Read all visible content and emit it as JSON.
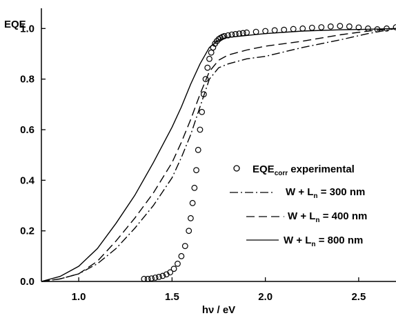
{
  "chart_data": {
    "type": "line",
    "ylabel": "EQE",
    "xlabel": "hν / eV",
    "xlim": [
      0.8,
      2.7
    ],
    "ylim": [
      0.0,
      1.08
    ],
    "x_ticks": [
      1.0,
      1.5,
      2.0,
      2.5
    ],
    "x_tick_labels": [
      "1.0",
      "1.5",
      "2.0",
      "2.5"
    ],
    "y_ticks": [
      0.0,
      0.2,
      0.4,
      0.6,
      0.8,
      1.0
    ],
    "y_tick_labels": [
      "0.0",
      "0.2",
      "0.4",
      "0.6",
      "0.8",
      "1.0"
    ],
    "grid": false,
    "legend_position": "right",
    "legend": {
      "experimental": {
        "base": "EQE",
        "sub": "corr",
        "rest": " experimental"
      },
      "w300": {
        "pre": "W + L",
        "sub": "n",
        "post": " = 300 nm"
      },
      "w400": {
        "pre": "W + L",
        "sub": "n",
        "post": " = 400 nm"
      },
      "w800": {
        "pre": "W + L",
        "sub": "n",
        "post": " = 800 nm"
      }
    },
    "series": [
      {
        "key": "w800",
        "style": "solid",
        "x": [
          0.8,
          0.9,
          1.0,
          1.1,
          1.2,
          1.3,
          1.4,
          1.5,
          1.55,
          1.6,
          1.65,
          1.7,
          1.75,
          1.8,
          2.0,
          2.2,
          2.4,
          2.55,
          2.7
        ],
        "y": [
          0.0,
          0.02,
          0.06,
          0.13,
          0.23,
          0.34,
          0.47,
          0.61,
          0.69,
          0.78,
          0.86,
          0.925,
          0.955,
          0.965,
          0.98,
          0.99,
          0.995,
          0.997,
          1.0
        ]
      },
      {
        "key": "w400",
        "style": "dashed",
        "x": [
          0.8,
          0.9,
          1.0,
          1.1,
          1.2,
          1.3,
          1.4,
          1.5,
          1.55,
          1.6,
          1.65,
          1.7,
          1.75,
          1.8,
          1.9,
          2.0,
          2.2,
          2.4,
          2.55,
          2.7
        ],
        "y": [
          0.0,
          0.01,
          0.03,
          0.08,
          0.16,
          0.25,
          0.35,
          0.47,
          0.55,
          0.64,
          0.74,
          0.83,
          0.875,
          0.895,
          0.915,
          0.93,
          0.95,
          0.975,
          0.99,
          1.0
        ]
      },
      {
        "key": "w300",
        "style": "dashdot",
        "x": [
          0.8,
          0.9,
          1.0,
          1.1,
          1.2,
          1.3,
          1.4,
          1.5,
          1.55,
          1.6,
          1.65,
          1.7,
          1.75,
          1.8,
          1.9,
          2.0,
          2.2,
          2.4,
          2.55,
          2.7
        ],
        "y": [
          0.0,
          0.01,
          0.03,
          0.07,
          0.13,
          0.21,
          0.3,
          0.41,
          0.49,
          0.58,
          0.69,
          0.8,
          0.845,
          0.86,
          0.88,
          0.89,
          0.925,
          0.955,
          0.98,
          1.0
        ]
      },
      {
        "key": "experimental",
        "style": "markers",
        "x": [
          1.35,
          1.37,
          1.39,
          1.41,
          1.43,
          1.45,
          1.47,
          1.49,
          1.51,
          1.53,
          1.55,
          1.57,
          1.59,
          1.6,
          1.61,
          1.62,
          1.63,
          1.64,
          1.65,
          1.66,
          1.67,
          1.68,
          1.69,
          1.7,
          1.71,
          1.72,
          1.73,
          1.74,
          1.75,
          1.76,
          1.77,
          1.78,
          1.8,
          1.82,
          1.84,
          1.86,
          1.88,
          1.9,
          1.95,
          2.0,
          2.05,
          2.1,
          2.15,
          2.2,
          2.25,
          2.3,
          2.35,
          2.4,
          2.45,
          2.5,
          2.55,
          2.6,
          2.65,
          2.7
        ],
        "y": [
          0.01,
          0.01,
          0.012,
          0.015,
          0.018,
          0.022,
          0.028,
          0.036,
          0.05,
          0.07,
          0.1,
          0.14,
          0.2,
          0.25,
          0.31,
          0.37,
          0.44,
          0.52,
          0.6,
          0.67,
          0.74,
          0.8,
          0.845,
          0.88,
          0.905,
          0.925,
          0.94,
          0.95,
          0.958,
          0.963,
          0.967,
          0.97,
          0.973,
          0.976,
          0.978,
          0.98,
          0.982,
          0.984,
          0.987,
          0.99,
          0.993,
          0.995,
          0.998,
          1.0,
          1.003,
          1.005,
          1.008,
          1.01,
          1.008,
          1.004,
          1.0,
          0.997,
          1.0,
          1.005
        ]
      }
    ]
  }
}
